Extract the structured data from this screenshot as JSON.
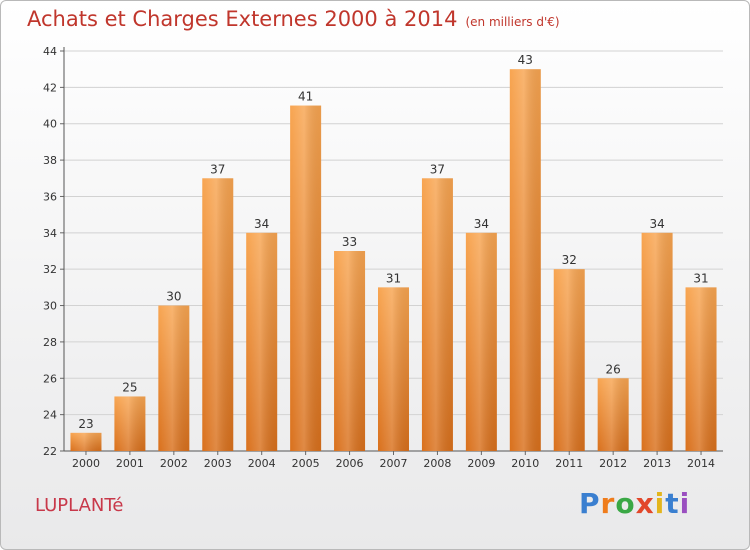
{
  "chart_data": {
    "type": "bar",
    "title": "Achats et Charges Externes 2000 à 2014",
    "subtitle": "(en milliers d'€)",
    "categories": [
      "2000",
      "2001",
      "2002",
      "2003",
      "2004",
      "2005",
      "2006",
      "2007",
      "2008",
      "2009",
      "2010",
      "2011",
      "2012",
      "2013",
      "2014"
    ],
    "values": [
      23,
      25,
      30,
      37,
      34,
      41,
      33,
      31,
      37,
      34,
      43,
      32,
      26,
      34,
      31
    ],
    "ylim": [
      22,
      44
    ],
    "yticks": [
      22,
      24,
      26,
      28,
      30,
      32,
      34,
      36,
      38,
      40,
      42,
      44
    ],
    "grid": true,
    "bar_color": "#f0913a"
  },
  "commune": "LUPLANTé",
  "logo": {
    "letters": [
      "P",
      "r",
      "o",
      "x",
      "i",
      "t",
      "i"
    ],
    "colors": [
      "#3a7fd0",
      "#ef7c1b",
      "#3aa845",
      "#e2472a",
      "#e3b51d",
      "#3a7fd0",
      "#9a4fc0"
    ]
  }
}
